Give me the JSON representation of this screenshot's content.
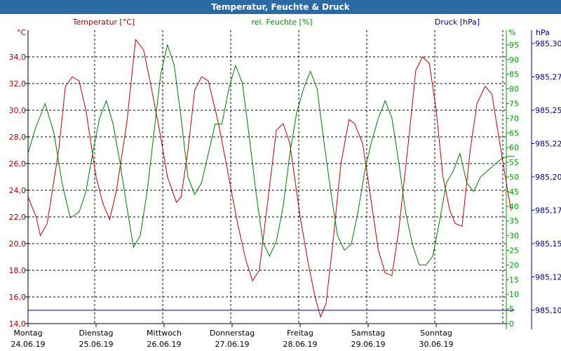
{
  "window": {
    "title": "Temperatur, Feuchte & Druck"
  },
  "chart_data": {
    "type": "line",
    "title": "Temperatur, Feuchte & Druck",
    "grid": true,
    "x_days": [
      {
        "day": "Montag",
        "date": "24.06.19"
      },
      {
        "day": "Dienstag",
        "date": "25.06.19"
      },
      {
        "day": "Mittwoch",
        "date": "26.06.19"
      },
      {
        "day": "Donnerstag",
        "date": "27.06.19"
      },
      {
        "day": "Freitag",
        "date": "28.06.19"
      },
      {
        "day": "Samstag",
        "date": "29.06.19"
      },
      {
        "day": "Sonntag",
        "date": "30.06.19"
      }
    ],
    "x_range_days": [
      0,
      7
    ],
    "axes": {
      "temperature": {
        "label": "Temperatur [°C]",
        "unit": "°C",
        "color": "#b00000",
        "range": [
          14,
          36
        ],
        "ticks": [
          14,
          16,
          18,
          20,
          22,
          24,
          26,
          28,
          30,
          32,
          34
        ],
        "tick_labels": [
          "14,0",
          "16,0",
          "18,0",
          "20,0",
          "22,0",
          "24,0",
          "26,0",
          "28,0",
          "30,0",
          "32,0",
          "34,0"
        ]
      },
      "humidity": {
        "label": "rel. Feuchte [%]",
        "unit": "%",
        "color": "#00a000",
        "range": [
          0,
          100
        ],
        "ticks": [
          0,
          5,
          10,
          15,
          20,
          25,
          30,
          35,
          40,
          45,
          50,
          55,
          60,
          65,
          70,
          75,
          80,
          85,
          90,
          95
        ],
        "tick_labels": [
          "0",
          "5",
          "10",
          "15",
          "20",
          "25",
          "30",
          "35",
          "40",
          "45",
          "50",
          "55",
          "60",
          "65",
          "70",
          "75",
          "80",
          "85",
          "90",
          "95"
        ]
      },
      "pressure": {
        "label": "Druck [hPa]",
        "unit": "hPa",
        "color": "#000090",
        "range": [
          985.09,
          985.31
        ],
        "ticks": [
          985.1,
          985.125,
          985.15,
          985.175,
          985.2,
          985.225,
          985.25,
          985.275,
          985.3
        ],
        "tick_labels": [
          "985,10",
          "985,12",
          "985,15",
          "985,17",
          "985,20",
          "985,22",
          "985,25",
          "985,27",
          "985,30"
        ]
      }
    },
    "series": [
      {
        "name": "Temperatur [°C]",
        "axis": "temperature",
        "color": "#c00000",
        "points": [
          [
            0,
            23.5
          ],
          [
            0.12,
            22
          ],
          [
            0.18,
            20.6
          ],
          [
            0.28,
            21.5
          ],
          [
            0.45,
            27
          ],
          [
            0.55,
            31.8
          ],
          [
            0.65,
            32.5
          ],
          [
            0.75,
            32.2
          ],
          [
            0.85,
            30
          ],
          [
            1.0,
            25
          ],
          [
            1.1,
            23
          ],
          [
            1.2,
            21.8
          ],
          [
            1.3,
            24
          ],
          [
            1.45,
            29
          ],
          [
            1.58,
            35.3
          ],
          [
            1.7,
            34.5
          ],
          [
            1.8,
            32
          ],
          [
            1.95,
            28
          ],
          [
            2.05,
            25
          ],
          [
            2.18,
            23.1
          ],
          [
            2.25,
            23.5
          ],
          [
            2.35,
            27
          ],
          [
            2.45,
            31.5
          ],
          [
            2.55,
            32.5
          ],
          [
            2.65,
            32.2
          ],
          [
            2.8,
            29
          ],
          [
            2.95,
            25
          ],
          [
            3.08,
            21.5
          ],
          [
            3.2,
            18.8
          ],
          [
            3.3,
            17.2
          ],
          [
            3.4,
            18
          ],
          [
            3.52,
            23
          ],
          [
            3.65,
            28.5
          ],
          [
            3.75,
            29
          ],
          [
            3.85,
            27.5
          ],
          [
            4.0,
            22
          ],
          [
            4.12,
            18.5
          ],
          [
            4.22,
            16
          ],
          [
            4.3,
            14.5
          ],
          [
            4.38,
            15.5
          ],
          [
            4.48,
            20
          ],
          [
            4.6,
            26
          ],
          [
            4.72,
            29.3
          ],
          [
            4.8,
            29
          ],
          [
            4.92,
            27.5
          ],
          [
            5.05,
            23
          ],
          [
            5.15,
            19.5
          ],
          [
            5.25,
            17.8
          ],
          [
            5.35,
            17.6
          ],
          [
            5.45,
            21
          ],
          [
            5.6,
            28
          ],
          [
            5.7,
            33
          ],
          [
            5.8,
            34
          ],
          [
            5.9,
            33.5
          ],
          [
            6.0,
            30
          ],
          [
            6.1,
            25
          ],
          [
            6.2,
            22.5
          ],
          [
            6.28,
            21.5
          ],
          [
            6.38,
            21.3
          ],
          [
            6.5,
            27
          ],
          [
            6.6,
            30.5
          ],
          [
            6.72,
            31.8
          ],
          [
            6.82,
            31.2
          ],
          [
            6.92,
            28
          ],
          [
            7.0,
            25.5
          ],
          [
            7.1,
            22.5
          ]
        ]
      },
      {
        "name": "rel. Feuchte [%]",
        "axis": "humidity",
        "color": "#007a00",
        "points": [
          [
            0,
            58
          ],
          [
            0.1,
            66
          ],
          [
            0.25,
            75
          ],
          [
            0.38,
            65
          ],
          [
            0.5,
            48
          ],
          [
            0.62,
            36
          ],
          [
            0.75,
            38
          ],
          [
            0.85,
            45
          ],
          [
            0.95,
            58
          ],
          [
            1.05,
            70
          ],
          [
            1.15,
            76
          ],
          [
            1.25,
            68
          ],
          [
            1.35,
            55
          ],
          [
            1.45,
            40
          ],
          [
            1.55,
            26
          ],
          [
            1.65,
            30
          ],
          [
            1.75,
            45
          ],
          [
            1.85,
            65
          ],
          [
            1.95,
            85
          ],
          [
            2.05,
            95
          ],
          [
            2.15,
            88
          ],
          [
            2.25,
            70
          ],
          [
            2.35,
            50
          ],
          [
            2.45,
            44
          ],
          [
            2.55,
            48
          ],
          [
            2.65,
            58
          ],
          [
            2.75,
            68
          ],
          [
            2.85,
            68
          ],
          [
            2.95,
            80
          ],
          [
            3.05,
            88
          ],
          [
            3.15,
            82
          ],
          [
            3.25,
            64
          ],
          [
            3.35,
            45
          ],
          [
            3.45,
            28
          ],
          [
            3.55,
            23
          ],
          [
            3.65,
            28
          ],
          [
            3.75,
            40
          ],
          [
            3.85,
            58
          ],
          [
            3.95,
            72
          ],
          [
            4.05,
            80
          ],
          [
            4.15,
            86
          ],
          [
            4.25,
            80
          ],
          [
            4.35,
            62
          ],
          [
            4.45,
            45
          ],
          [
            4.55,
            30
          ],
          [
            4.65,
            25
          ],
          [
            4.75,
            27
          ],
          [
            4.85,
            38
          ],
          [
            4.95,
            52
          ],
          [
            5.05,
            62
          ],
          [
            5.15,
            70
          ],
          [
            5.25,
            76
          ],
          [
            5.35,
            70
          ],
          [
            5.45,
            55
          ],
          [
            5.55,
            38
          ],
          [
            5.65,
            27
          ],
          [
            5.75,
            20
          ],
          [
            5.85,
            20
          ],
          [
            5.95,
            23
          ],
          [
            6.05,
            35
          ],
          [
            6.15,
            48
          ],
          [
            6.25,
            52
          ],
          [
            6.35,
            58
          ],
          [
            6.45,
            48
          ],
          [
            6.55,
            45
          ],
          [
            6.65,
            50
          ],
          [
            6.75,
            52
          ],
          [
            6.85,
            54
          ],
          [
            6.95,
            56
          ],
          [
            7.05,
            57
          ],
          [
            7.15,
            57
          ]
        ]
      },
      {
        "name": "Druck [hPa]",
        "axis": "pressure",
        "color": "#000090",
        "points": [
          [
            0,
            985.1
          ],
          [
            7.15,
            985.1
          ]
        ]
      }
    ]
  }
}
